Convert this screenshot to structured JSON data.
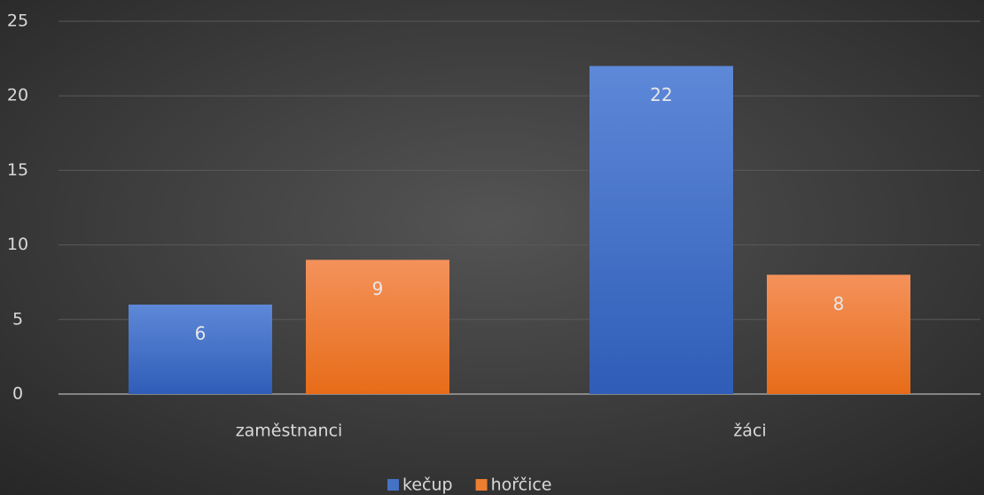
{
  "chart_data": {
    "type": "bar",
    "categories": [
      "zaměstnanci",
      "žáci"
    ],
    "series": [
      {
        "name": "kečup",
        "color": "#4472c4",
        "values": [
          6,
          22
        ]
      },
      {
        "name": "hořčice",
        "color": "#ed7d31",
        "values": [
          9,
          8
        ]
      }
    ],
    "ylim": [
      0,
      25
    ],
    "yticks": [
      0,
      5,
      10,
      15,
      20,
      25
    ],
    "grid": true,
    "legend": "bottom"
  }
}
